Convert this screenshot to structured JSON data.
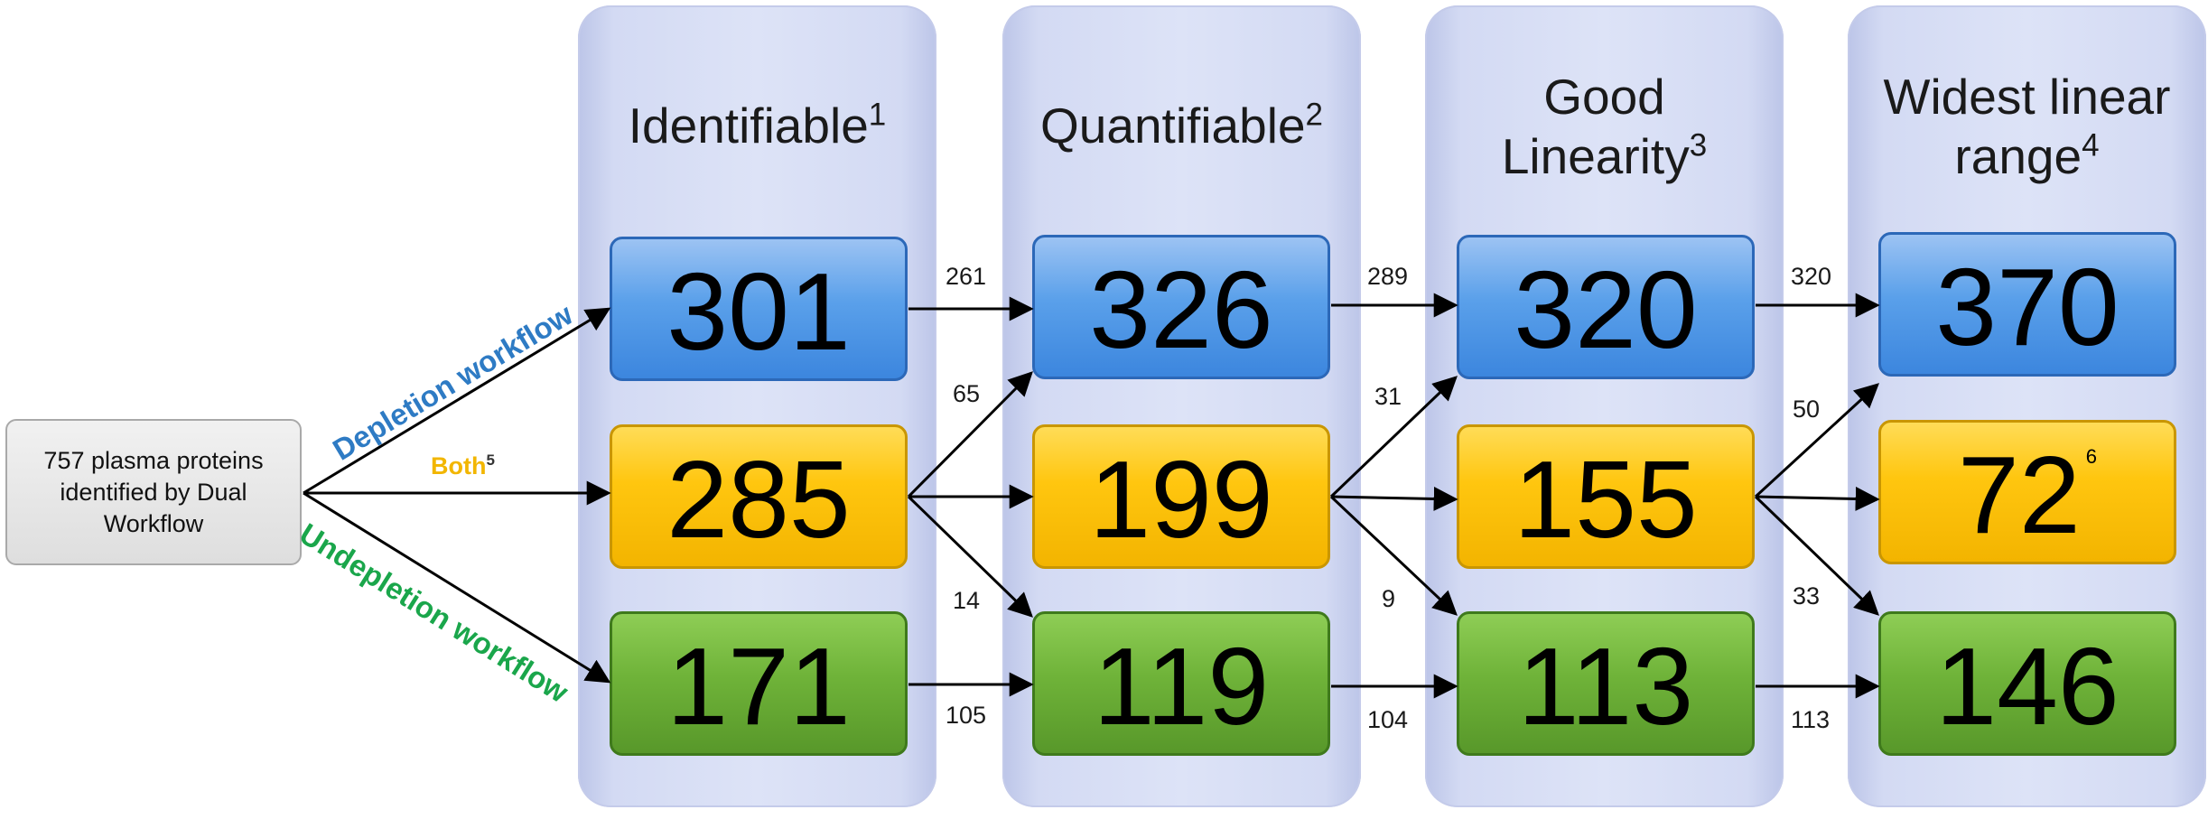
{
  "source_box": {
    "text": "757 plasma proteins identified by Dual Workflow"
  },
  "workflows": {
    "depletion": {
      "label": "Depletion workflow",
      "color": "#2e7bc4"
    },
    "both": {
      "label": "Both",
      "superscript": "5",
      "color": "#f2b600"
    },
    "undepletion": {
      "label": "Undepletion workflow",
      "color": "#1aa64b"
    }
  },
  "columns": [
    {
      "title_lines": [
        "Identifiable"
      ],
      "superscript": "1",
      "values": {
        "depletion": "301",
        "both": "285",
        "undepletion": "171"
      }
    },
    {
      "title_lines": [
        "Quantifiable"
      ],
      "superscript": "2",
      "values": {
        "depletion": "326",
        "both": "199",
        "undepletion": "119"
      }
    },
    {
      "title_lines": [
        "Good",
        "Linearity"
      ],
      "superscript": "3",
      "values": {
        "depletion": "320",
        "both": "155",
        "undepletion": "113"
      }
    },
    {
      "title_lines": [
        "Widest linear",
        "range"
      ],
      "superscript": "4",
      "values": {
        "depletion": "370",
        "both": "72",
        "both_superscript": "6",
        "undepletion": "146"
      }
    }
  ],
  "transitions": [
    {
      "from_column": 1,
      "to_column": 2,
      "depletion_to_depletion": "261",
      "both_to_depletion": "65",
      "both_to_undepletion": "14",
      "undepletion_to_undepletion": "105"
    },
    {
      "from_column": 2,
      "to_column": 3,
      "depletion_to_depletion": "289",
      "both_to_depletion": "31",
      "both_to_undepletion": "9",
      "undepletion_to_undepletion": "104"
    },
    {
      "from_column": 3,
      "to_column": 4,
      "depletion_to_depletion": "320",
      "both_to_depletion": "50",
      "both_to_undepletion": "33",
      "undepletion_to_undepletion": "113"
    }
  ],
  "colors": {
    "depletion_box": "#4a92e6",
    "both_box": "#ffc61a",
    "undepletion_box": "#6db33f",
    "column_panel": "#d6dcf4"
  }
}
